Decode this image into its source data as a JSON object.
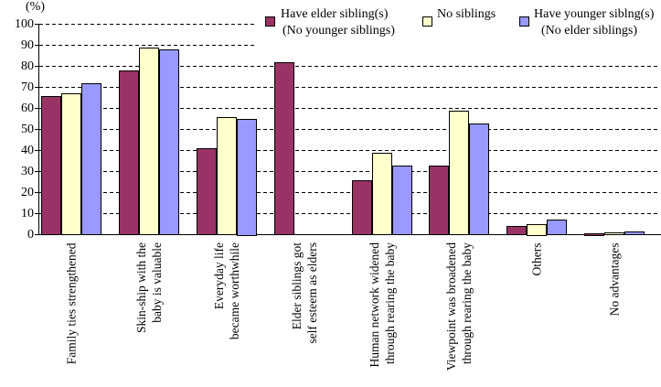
{
  "unit_label": "(%)",
  "chart_data": {
    "type": "bar",
    "title": "",
    "xlabel": "",
    "ylabel": "(%)",
    "ylim": [
      0,
      100
    ],
    "ytick_step": 10,
    "grid": "horizontal-dashed",
    "legend_position": "top-right",
    "categories": [
      {
        "lines": [
          "Family ties strengthened"
        ]
      },
      {
        "lines": [
          "Skin-ship with the",
          "baby is valuable"
        ]
      },
      {
        "lines": [
          "Everyday life",
          "became worthwhile"
        ]
      },
      {
        "lines": [
          "Elder siblings got",
          "self esteem as elders"
        ]
      },
      {
        "lines": [
          "Human network widened",
          "through rearing the baby"
        ]
      },
      {
        "lines": [
          "Viewpoint was broadened",
          "through rearing the baby"
        ]
      },
      {
        "lines": [
          "Others"
        ]
      },
      {
        "lines": [
          "No advantages"
        ]
      }
    ],
    "series": [
      {
        "name": "Have elder sibling(s) (No younger siblings)",
        "legend_lines": [
          "Have elder sibling(s)",
          "(No younger siblings)"
        ],
        "color": "#9A3365",
        "values": [
          66,
          78,
          41,
          82,
          26,
          33,
          4,
          0.5
        ]
      },
      {
        "name": "No siblings",
        "legend_lines": [
          "No siblings",
          ""
        ],
        "color": "#FFFFCC",
        "values": [
          67,
          89,
          56,
          null,
          39,
          59,
          5,
          1
        ]
      },
      {
        "name": "Have younger siblng(s) (No elder siblings)",
        "legend_lines": [
          "Have younger siblng(s)",
          "(No elder siblings)"
        ],
        "color": "#9999FF",
        "values": [
          72,
          88,
          55,
          null,
          33,
          53,
          7,
          1.5
        ]
      }
    ]
  }
}
